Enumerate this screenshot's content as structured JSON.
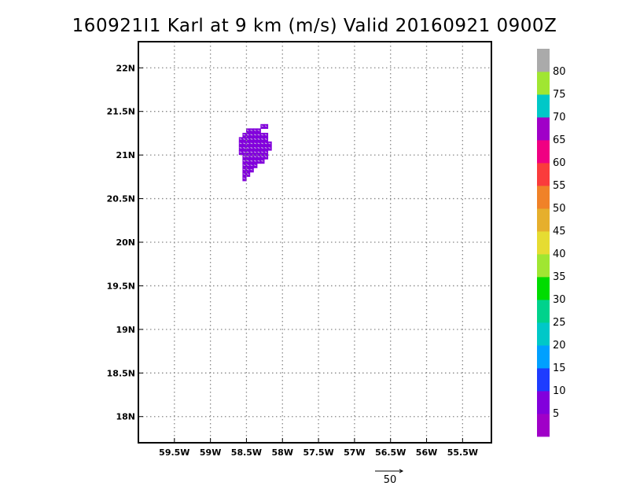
{
  "chart_data": {
    "type": "heatmap",
    "title": "160921I1 Karl at 9 km (m/s) Valid 20160921  0900Z",
    "x_ticks": [
      {
        "value": -59.5,
        "label": "59.5W"
      },
      {
        "value": -59.0,
        "label": "59W"
      },
      {
        "value": -58.5,
        "label": "58.5W"
      },
      {
        "value": -58.0,
        "label": "58W"
      },
      {
        "value": -57.5,
        "label": "57.5W"
      },
      {
        "value": -57.0,
        "label": "57W"
      },
      {
        "value": -56.5,
        "label": "56.5W"
      },
      {
        "value": -56.0,
        "label": "56W"
      },
      {
        "value": -55.5,
        "label": "55.5W"
      }
    ],
    "y_ticks": [
      {
        "value": 22.0,
        "label": "22N"
      },
      {
        "value": 21.5,
        "label": "21.5N"
      },
      {
        "value": 21.0,
        "label": "21N"
      },
      {
        "value": 20.5,
        "label": "20.5N"
      },
      {
        "value": 20.0,
        "label": "20N"
      },
      {
        "value": 19.5,
        "label": "19.5N"
      },
      {
        "value": 19.0,
        "label": "19N"
      },
      {
        "value": 18.5,
        "label": "18.5N"
      },
      {
        "value": 18.0,
        "label": "18N"
      }
    ],
    "xlim": [
      -60.0,
      -55.1
    ],
    "ylim": [
      17.7,
      22.3
    ],
    "grid": true,
    "cell_size_deg": 0.05,
    "value_range": [
      0,
      5
    ],
    "cells": [
      {
        "lon": -58.48,
        "lat": 21.28
      },
      {
        "lon": -58.43,
        "lat": 21.28
      },
      {
        "lon": -58.38,
        "lat": 21.28
      },
      {
        "lon": -58.33,
        "lat": 21.28
      },
      {
        "lon": -58.28,
        "lat": 21.33
      },
      {
        "lon": -58.23,
        "lat": 21.33
      },
      {
        "lon": -58.53,
        "lat": 21.23
      },
      {
        "lon": -58.48,
        "lat": 21.23
      },
      {
        "lon": -58.43,
        "lat": 21.23
      },
      {
        "lon": -58.38,
        "lat": 21.23
      },
      {
        "lon": -58.33,
        "lat": 21.23
      },
      {
        "lon": -58.28,
        "lat": 21.23
      },
      {
        "lon": -58.23,
        "lat": 21.23
      },
      {
        "lon": -58.58,
        "lat": 21.18
      },
      {
        "lon": -58.53,
        "lat": 21.18
      },
      {
        "lon": -58.48,
        "lat": 21.18
      },
      {
        "lon": -58.43,
        "lat": 21.18
      },
      {
        "lon": -58.38,
        "lat": 21.18
      },
      {
        "lon": -58.33,
        "lat": 21.18
      },
      {
        "lon": -58.28,
        "lat": 21.18
      },
      {
        "lon": -58.23,
        "lat": 21.18
      },
      {
        "lon": -58.58,
        "lat": 21.13
      },
      {
        "lon": -58.53,
        "lat": 21.13
      },
      {
        "lon": -58.48,
        "lat": 21.13
      },
      {
        "lon": -58.43,
        "lat": 21.13
      },
      {
        "lon": -58.38,
        "lat": 21.13
      },
      {
        "lon": -58.33,
        "lat": 21.13
      },
      {
        "lon": -58.28,
        "lat": 21.13
      },
      {
        "lon": -58.23,
        "lat": 21.13
      },
      {
        "lon": -58.18,
        "lat": 21.13
      },
      {
        "lon": -58.58,
        "lat": 21.08
      },
      {
        "lon": -58.53,
        "lat": 21.08
      },
      {
        "lon": -58.48,
        "lat": 21.08
      },
      {
        "lon": -58.43,
        "lat": 21.08
      },
      {
        "lon": -58.38,
        "lat": 21.08
      },
      {
        "lon": -58.33,
        "lat": 21.08
      },
      {
        "lon": -58.28,
        "lat": 21.08
      },
      {
        "lon": -58.23,
        "lat": 21.08
      },
      {
        "lon": -58.18,
        "lat": 21.08
      },
      {
        "lon": -58.58,
        "lat": 21.03
      },
      {
        "lon": -58.53,
        "lat": 21.03
      },
      {
        "lon": -58.48,
        "lat": 21.03
      },
      {
        "lon": -58.43,
        "lat": 21.03
      },
      {
        "lon": -58.38,
        "lat": 21.03
      },
      {
        "lon": -58.33,
        "lat": 21.03
      },
      {
        "lon": -58.28,
        "lat": 21.03
      },
      {
        "lon": -58.23,
        "lat": 21.03
      },
      {
        "lon": -58.53,
        "lat": 20.98
      },
      {
        "lon": -58.48,
        "lat": 20.98
      },
      {
        "lon": -58.43,
        "lat": 20.98
      },
      {
        "lon": -58.38,
        "lat": 20.98
      },
      {
        "lon": -58.33,
        "lat": 20.98
      },
      {
        "lon": -58.28,
        "lat": 20.98
      },
      {
        "lon": -58.23,
        "lat": 20.98
      },
      {
        "lon": -58.53,
        "lat": 20.93
      },
      {
        "lon": -58.48,
        "lat": 20.93
      },
      {
        "lon": -58.43,
        "lat": 20.93
      },
      {
        "lon": -58.38,
        "lat": 20.93
      },
      {
        "lon": -58.33,
        "lat": 20.93
      },
      {
        "lon": -58.28,
        "lat": 20.93
      },
      {
        "lon": -58.53,
        "lat": 20.88
      },
      {
        "lon": -58.48,
        "lat": 20.88
      },
      {
        "lon": -58.43,
        "lat": 20.88
      },
      {
        "lon": -58.38,
        "lat": 20.88
      },
      {
        "lon": -58.53,
        "lat": 20.83
      },
      {
        "lon": -58.48,
        "lat": 20.83
      },
      {
        "lon": -58.43,
        "lat": 20.83
      },
      {
        "lon": -58.53,
        "lat": 20.78
      },
      {
        "lon": -58.48,
        "lat": 20.78
      },
      {
        "lon": -58.53,
        "lat": 20.73
      }
    ],
    "colorbar": [
      {
        "color": "#a000c8",
        "label": ""
      },
      {
        "color": "#8200dc",
        "label": "5"
      },
      {
        "color": "#1e3cff",
        "label": "10"
      },
      {
        "color": "#00a0ff",
        "label": "15"
      },
      {
        "color": "#00c8c8",
        "label": "20"
      },
      {
        "color": "#00d28c",
        "label": "25"
      },
      {
        "color": "#00dc00",
        "label": "30"
      },
      {
        "color": "#a0e632",
        "label": "35"
      },
      {
        "color": "#e6dc32",
        "label": "40"
      },
      {
        "color": "#e6af2d",
        "label": "45"
      },
      {
        "color": "#f08228",
        "label": "50"
      },
      {
        "color": "#fa3c3c",
        "label": "55"
      },
      {
        "color": "#f00082",
        "label": "60"
      },
      {
        "color": "#a000c8",
        "label": "65"
      },
      {
        "color": "#00c8c8",
        "label": "70"
      },
      {
        "color": "#a0e632",
        "label": "75"
      },
      {
        "color": "#aaaaaa",
        "label": "80"
      }
    ],
    "reference_vector_label": "50"
  }
}
